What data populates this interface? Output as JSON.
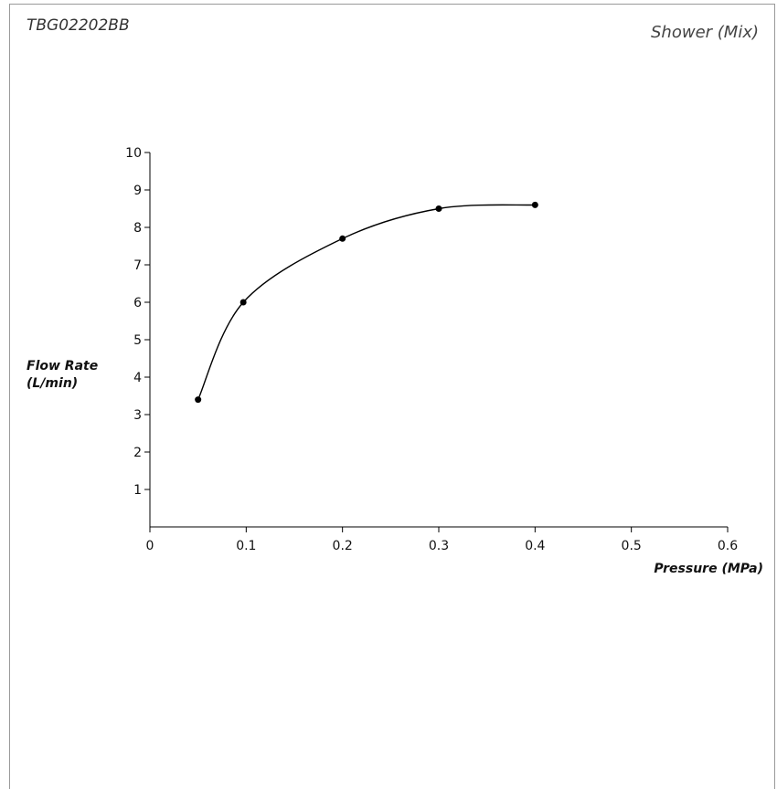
{
  "header": {
    "model_code": "TBG02202BB",
    "fixture_type": "Shower (Mix)"
  },
  "chart_data": {
    "type": "line",
    "xlabel": "Pressure (MPa)",
    "ylabel_lines": [
      "Flow Rate",
      "(L/min)"
    ],
    "xlim": [
      0,
      0.6
    ],
    "ylim": [
      0,
      10
    ],
    "x_ticks": [
      0,
      0.1,
      0.2,
      0.3,
      0.4,
      0.5,
      0.6
    ],
    "x_tick_labels": [
      "0",
      "0.1",
      "0.2",
      "0.3",
      "0.4",
      "0.5",
      "0.6"
    ],
    "y_ticks": [
      1,
      2,
      3,
      4,
      5,
      6,
      7,
      8,
      9,
      10
    ],
    "y_tick_labels": [
      "1",
      "2",
      "3",
      "4",
      "5",
      "6",
      "7",
      "8",
      "9",
      "10"
    ],
    "grid": false,
    "series": [
      {
        "x": [
          0.05,
          0.097,
          0.2,
          0.3,
          0.4
        ],
        "y": [
          3.4,
          6.0,
          7.7,
          8.5,
          8.6
        ]
      }
    ]
  }
}
